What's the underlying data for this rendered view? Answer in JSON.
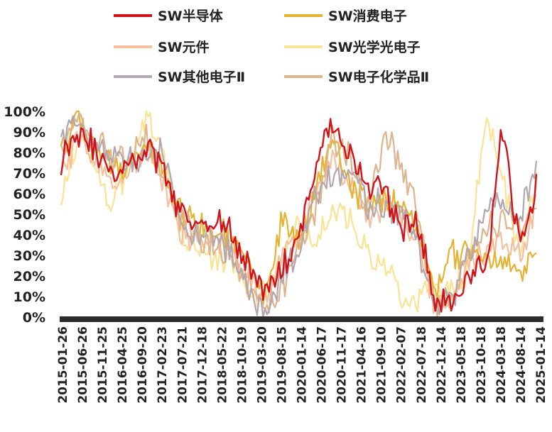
{
  "chart_data": {
    "type": "line",
    "title": "",
    "xlabel": "",
    "ylabel": "",
    "ylim": [
      0,
      100
    ],
    "y_ticks": [
      "100%",
      "90%",
      "80%",
      "70%",
      "60%",
      "50%",
      "40%",
      "30%",
      "20%",
      "10%",
      "0%"
    ],
    "x_ticks": [
      "2015-01-26",
      "2015-06-26",
      "2015-11-25",
      "2016-04-25",
      "2016-09-20",
      "2017-02-23",
      "2017-07-21",
      "2017-12-18",
      "2018-05-22",
      "2018-10-19",
      "2019-03-20",
      "2019-08-15",
      "2020-01-14",
      "2020-06-17",
      "2020-11-17",
      "2021-04-16",
      "2021-09-10",
      "2022-02-07",
      "2022-07-18",
      "2022-12-14",
      "2023-05-18",
      "2023-10-18",
      "2024-03-18",
      "2024-08-14",
      "2025-01-14"
    ],
    "legend_position": "top",
    "grid": false,
    "series": [
      {
        "name": "SW半导体",
        "color": "#d0121b",
        "values": [
          78,
          92,
          83,
          70,
          75,
          82,
          70,
          50,
          43,
          48,
          40,
          28,
          12,
          22,
          38,
          75,
          95,
          80,
          62,
          62,
          45,
          45,
          8,
          5,
          22,
          20,
          92,
          35,
          62
        ]
      },
      {
        "name": "SW消费电子",
        "color": "#e6b231",
        "values": [
          80,
          96,
          82,
          72,
          72,
          85,
          72,
          50,
          45,
          42,
          38,
          25,
          8,
          46,
          38,
          60,
          85,
          65,
          55,
          55,
          55,
          40,
          12,
          30,
          35,
          30,
          25,
          20,
          32
        ]
      },
      {
        "name": "SW元件",
        "color": "#f4c09d",
        "values": [
          70,
          88,
          80,
          62,
          70,
          82,
          65,
          40,
          38,
          38,
          35,
          20,
          5,
          30,
          40,
          60,
          80,
          62,
          48,
          55,
          48,
          40,
          5,
          10,
          25,
          30,
          40,
          30,
          55
        ]
      },
      {
        "name": "SW光学光电子",
        "color": "#fbe394",
        "values": [
          60,
          90,
          75,
          55,
          72,
          95,
          80,
          42,
          35,
          28,
          30,
          10,
          12,
          25,
          45,
          35,
          55,
          45,
          30,
          30,
          10,
          8,
          15,
          12,
          25,
          100,
          68,
          30,
          68
        ]
      },
      {
        "name": "SW其他电子Ⅱ",
        "color": "#b2a7ae",
        "values": [
          85,
          95,
          80,
          78,
          75,
          80,
          80,
          45,
          40,
          38,
          30,
          15,
          2,
          20,
          30,
          60,
          70,
          72,
          55,
          55,
          50,
          35,
          5,
          8,
          30,
          50,
          55,
          48,
          75
        ]
      },
      {
        "name": "SW电子化学品Ⅱ",
        "color": "#deb48d",
        "values": [
          82,
          98,
          90,
          75,
          78,
          88,
          70,
          48,
          40,
          35,
          30,
          18,
          3,
          15,
          35,
          50,
          85,
          80,
          50,
          88,
          75,
          55,
          3,
          10,
          30,
          45,
          45,
          45,
          55
        ]
      }
    ]
  }
}
